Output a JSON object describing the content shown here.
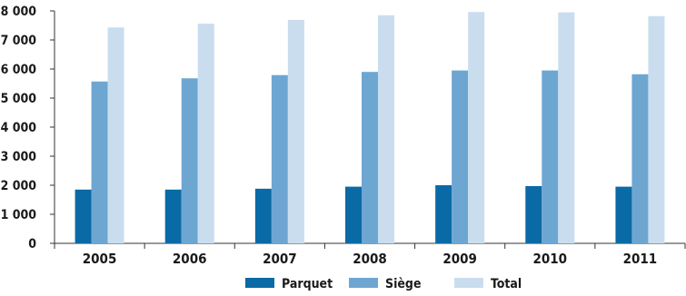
{
  "chart_data": {
    "type": "bar",
    "categories": [
      "2005",
      "2006",
      "2007",
      "2008",
      "2009",
      "2010",
      "2011"
    ],
    "series": [
      {
        "name": "Parquet",
        "color": "#0a6aa6",
        "values": [
          1850,
          1850,
          1880,
          1950,
          2000,
          1970,
          1950
        ]
      },
      {
        "name": "Siège",
        "color": "#6ea6d2",
        "values": [
          5570,
          5680,
          5790,
          5900,
          5950,
          5950,
          5820
        ]
      },
      {
        "name": "Total",
        "color": "#c9ddef",
        "values": [
          7430,
          7560,
          7690,
          7850,
          7960,
          7950,
          7820
        ]
      }
    ],
    "ylim": [
      0,
      8000
    ],
    "yticks": [
      0,
      1000,
      2000,
      3000,
      4000,
      5000,
      6000,
      7000,
      8000
    ],
    "ytick_labels": [
      "0",
      "1 000",
      "2 000",
      "3 000",
      "4 000",
      "5 000",
      "6 000",
      "7 000",
      "8 000"
    ],
    "grid": false,
    "legend_position": "bottom"
  }
}
